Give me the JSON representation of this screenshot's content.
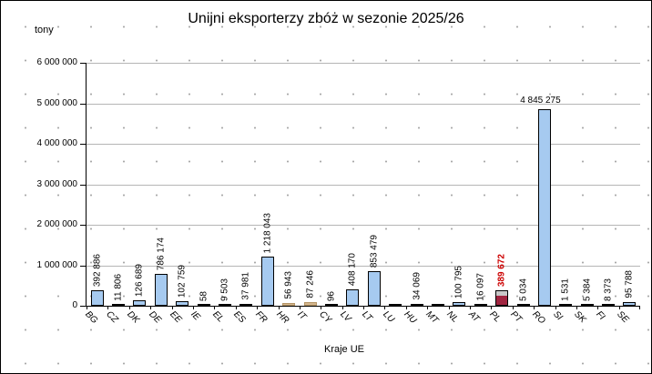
{
  "chart_data": {
    "type": "bar",
    "title": "Unijni eksporterzy zbóż w sezonie 2025/26",
    "xlabel": "Kraje UE",
    "ylabel": "tony",
    "ylim": [
      0,
      6000000
    ],
    "ytick_step": 1000000,
    "ytick_labels": [
      "0",
      "1 000 000",
      "2 000 000",
      "3 000 000",
      "4 000 000",
      "5 000 000",
      "6 000 000"
    ],
    "grid": "horizontal-dotted-background",
    "legend": "none",
    "categories": [
      "BG",
      "CZ",
      "DK",
      "DE",
      "EE",
      "IE",
      "EL",
      "ES",
      "FR",
      "HR",
      "IT",
      "CY",
      "LV",
      "LT",
      "LU",
      "HU",
      "MT",
      "NL",
      "AT",
      "PL",
      "PT",
      "RO",
      "SI",
      "SK",
      "FI",
      "SE"
    ],
    "points": [
      {
        "cat": "BG",
        "value": 392886,
        "label": "392 886"
      },
      {
        "cat": "CZ",
        "value": 11806,
        "label": "11 806"
      },
      {
        "cat": "DK",
        "value": 126689,
        "label": "126 689"
      },
      {
        "cat": "DE",
        "value": 786174,
        "label": "786 174"
      },
      {
        "cat": "EE",
        "value": 102759,
        "label": "102 759"
      },
      {
        "cat": "IE",
        "value": 58,
        "label": "58"
      },
      {
        "cat": "EL",
        "value": 9503,
        "label": "9 503"
      },
      {
        "cat": "ES",
        "value": 37981,
        "label": "37 981"
      },
      {
        "cat": "FR",
        "value": 1218043,
        "label": "1 218 043"
      },
      {
        "cat": "HR",
        "value": 56943,
        "label": "56 943",
        "color": "tan"
      },
      {
        "cat": "IT",
        "value": 87246,
        "label": "87 246",
        "color": "tan"
      },
      {
        "cat": "CY",
        "value": 96,
        "label": "96"
      },
      {
        "cat": "LV",
        "value": 408170,
        "label": "408 170"
      },
      {
        "cat": "LT",
        "value": 853479,
        "label": "853 479"
      },
      {
        "cat": "LU",
        "value": 0,
        "label": ""
      },
      {
        "cat": "HU",
        "value": 34069,
        "label": "34 069"
      },
      {
        "cat": "MT",
        "value": 0,
        "label": ""
      },
      {
        "cat": "NL",
        "value": 100795,
        "label": "100 795"
      },
      {
        "cat": "AT",
        "value": 16097,
        "label": "16 097"
      },
      {
        "cat": "PL",
        "value": 389672,
        "label": "389 672",
        "color": "pl",
        "label_style": "red-bold"
      },
      {
        "cat": "PT",
        "value": 5034,
        "label": "5 034"
      },
      {
        "cat": "RO",
        "value": 4845275,
        "label": "4 845 275",
        "label_orientation": "horizontal"
      },
      {
        "cat": "SI",
        "value": 1531,
        "label": "1 531"
      },
      {
        "cat": "SK",
        "value": 5384,
        "label": "5 384"
      },
      {
        "cat": "FI",
        "value": 8373,
        "label": "8 373"
      },
      {
        "cat": "SE",
        "value": 95788,
        "label": "95 788"
      }
    ],
    "pl_bar_top_fraction": 0.28,
    "colors": {
      "bar_default": "#A6CAF0",
      "bar_border": "#000000",
      "bar_tan": "#D2B48C",
      "bar_tan_border": "#B49465",
      "pl_bottom": "#A02540",
      "pl_top": "#C8C8C8",
      "value_label_highlight": "#CC0000",
      "gridline": "#B5B5B5"
    }
  }
}
